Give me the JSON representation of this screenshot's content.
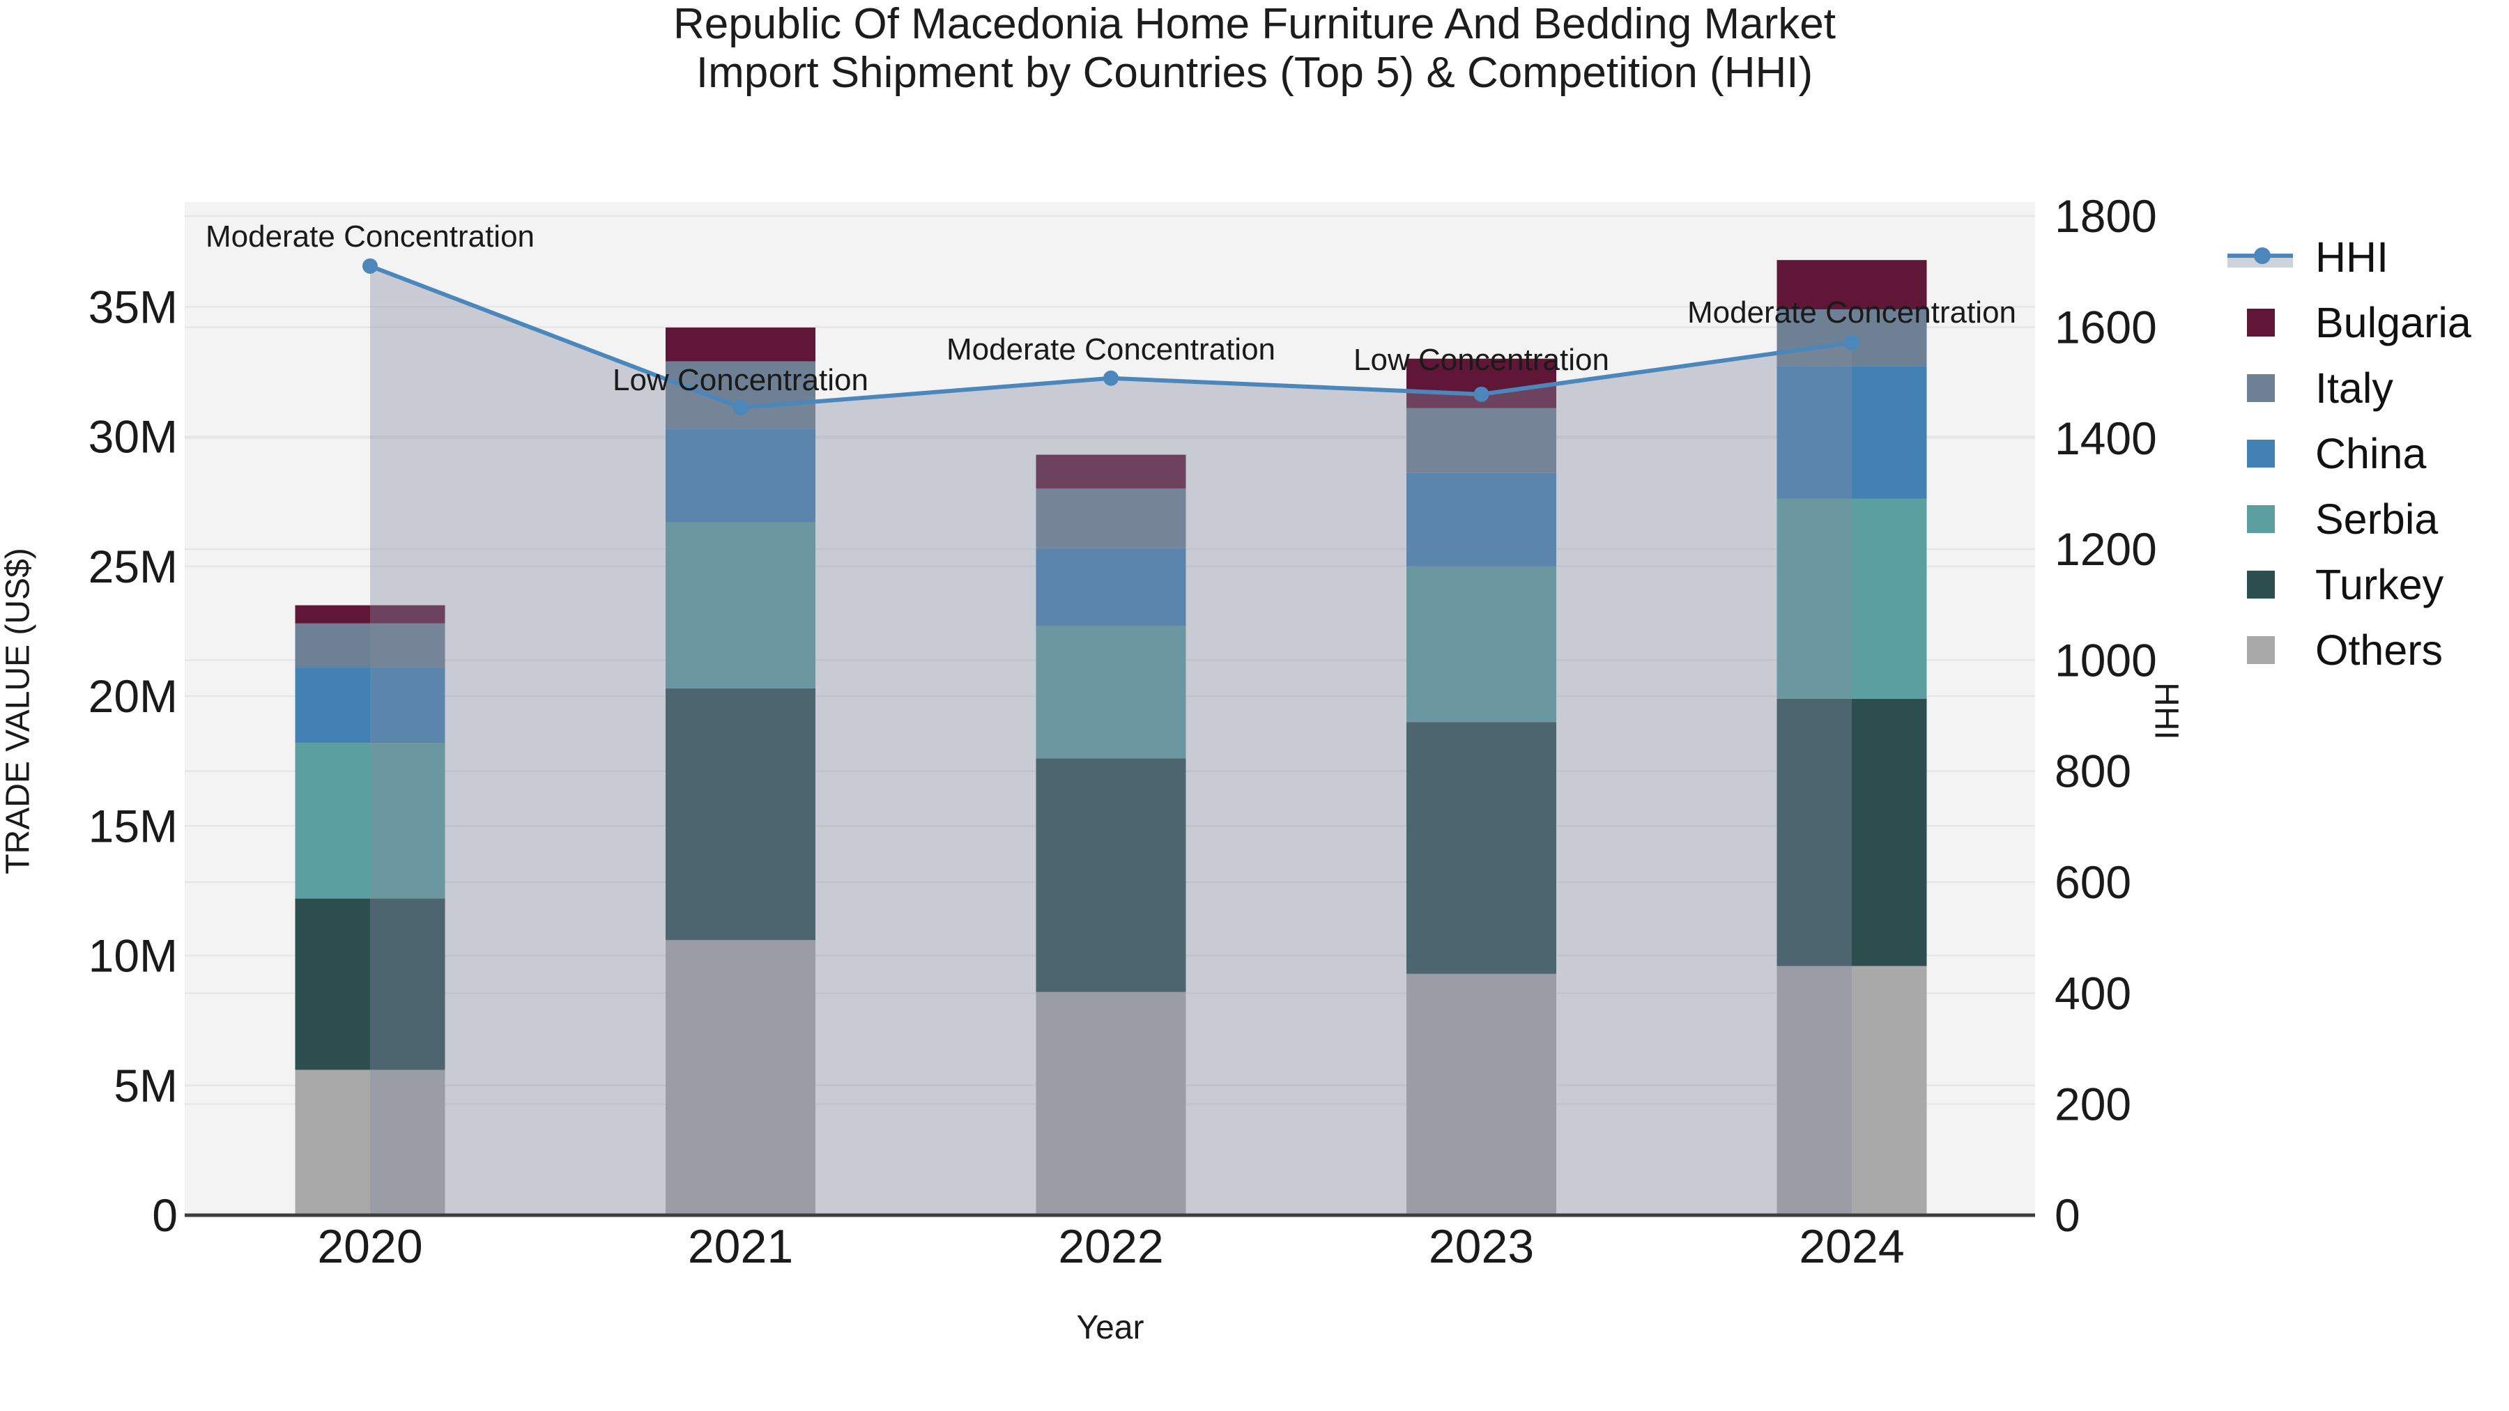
{
  "title": {
    "line1": "Republic Of Macedonia Home Furniture And Bedding Market",
    "line2": "Import Shipment by Countries (Top 5) & Competition (HHI)"
  },
  "axes": {
    "x_label": "Year",
    "y_left_label": "TRADE VALUE (US$)",
    "y_right_label": "HHI"
  },
  "legend": {
    "items": [
      {
        "label": "HHI",
        "type": "line"
      },
      {
        "label": "Bulgaria",
        "type": "swatch",
        "color": "#5f1637"
      },
      {
        "label": "Italy",
        "type": "swatch",
        "color": "#6e8093"
      },
      {
        "label": "China",
        "type": "swatch",
        "color": "#4381b4"
      },
      {
        "label": "Serbia",
        "type": "swatch",
        "color": "#5c9fa1"
      },
      {
        "label": "Turkey",
        "type": "swatch",
        "color": "#2d4e4f"
      },
      {
        "label": "Others",
        "type": "swatch",
        "color": "#a9a9a9"
      }
    ]
  },
  "colors": {
    "plot_bg": "#f3f3f3",
    "grid": "#e4e4e4",
    "axis_line": "#3d3d3d",
    "hhi_line": "#4b87bb",
    "hhi_fill": "rgba(132,140,161,0.38)",
    "text": "#1a1a1a"
  },
  "chart_data": {
    "type": "combo-stacked-bar-line",
    "categories": [
      "2020",
      "2021",
      "2022",
      "2023",
      "2024"
    ],
    "bar_unit": "M US$",
    "series": [
      {
        "name": "Others",
        "color": "#a9a9a9",
        "values": [
          5.6,
          10.6,
          8.6,
          9.3,
          9.6
        ]
      },
      {
        "name": "Turkey",
        "color": "#2d4e4f",
        "values": [
          6.6,
          9.7,
          9.0,
          9.7,
          10.3
        ]
      },
      {
        "name": "Serbia",
        "color": "#5c9fa1",
        "values": [
          6.0,
          6.4,
          5.1,
          6.0,
          7.7
        ]
      },
      {
        "name": "China",
        "color": "#4381b4",
        "values": [
          2.9,
          3.6,
          3.0,
          3.6,
          5.1
        ]
      },
      {
        "name": "Italy",
        "color": "#6e8093",
        "values": [
          1.7,
          2.6,
          2.3,
          2.5,
          2.2
        ]
      },
      {
        "name": "Bulgaria",
        "color": "#5f1637",
        "values": [
          0.7,
          1.3,
          1.3,
          1.9,
          1.9
        ]
      }
    ],
    "bar_totals": [
      23.5,
      34.2,
      29.3,
      33.0,
      36.8
    ],
    "line_series": {
      "name": "HHI",
      "values": [
        1710,
        1455,
        1508,
        1479,
        1572
      ],
      "axis": "right",
      "area_fill": true
    },
    "annotations": [
      "Moderate Concentration",
      "Low Concentration",
      "Moderate Concentration",
      "Low Concentration",
      "Moderate Concentration"
    ],
    "y_left": {
      "label": "TRADE VALUE (US$)",
      "tick_values": [
        0,
        5,
        10,
        15,
        20,
        25,
        30,
        35
      ],
      "tick_labels": [
        "0",
        "5M",
        "10M",
        "15M",
        "20M",
        "25M",
        "30M",
        "35M"
      ],
      "range": [
        0,
        39
      ]
    },
    "y_right": {
      "label": "HHI",
      "tick_values": [
        0,
        200,
        400,
        600,
        800,
        1000,
        1200,
        1400,
        1600,
        1800
      ],
      "tick_labels": [
        "0",
        "200",
        "400",
        "600",
        "800",
        "1000",
        "1200",
        "1400",
        "1600",
        "1800"
      ],
      "range": [
        0,
        1825
      ]
    },
    "grid": true,
    "legend_position": "right"
  }
}
